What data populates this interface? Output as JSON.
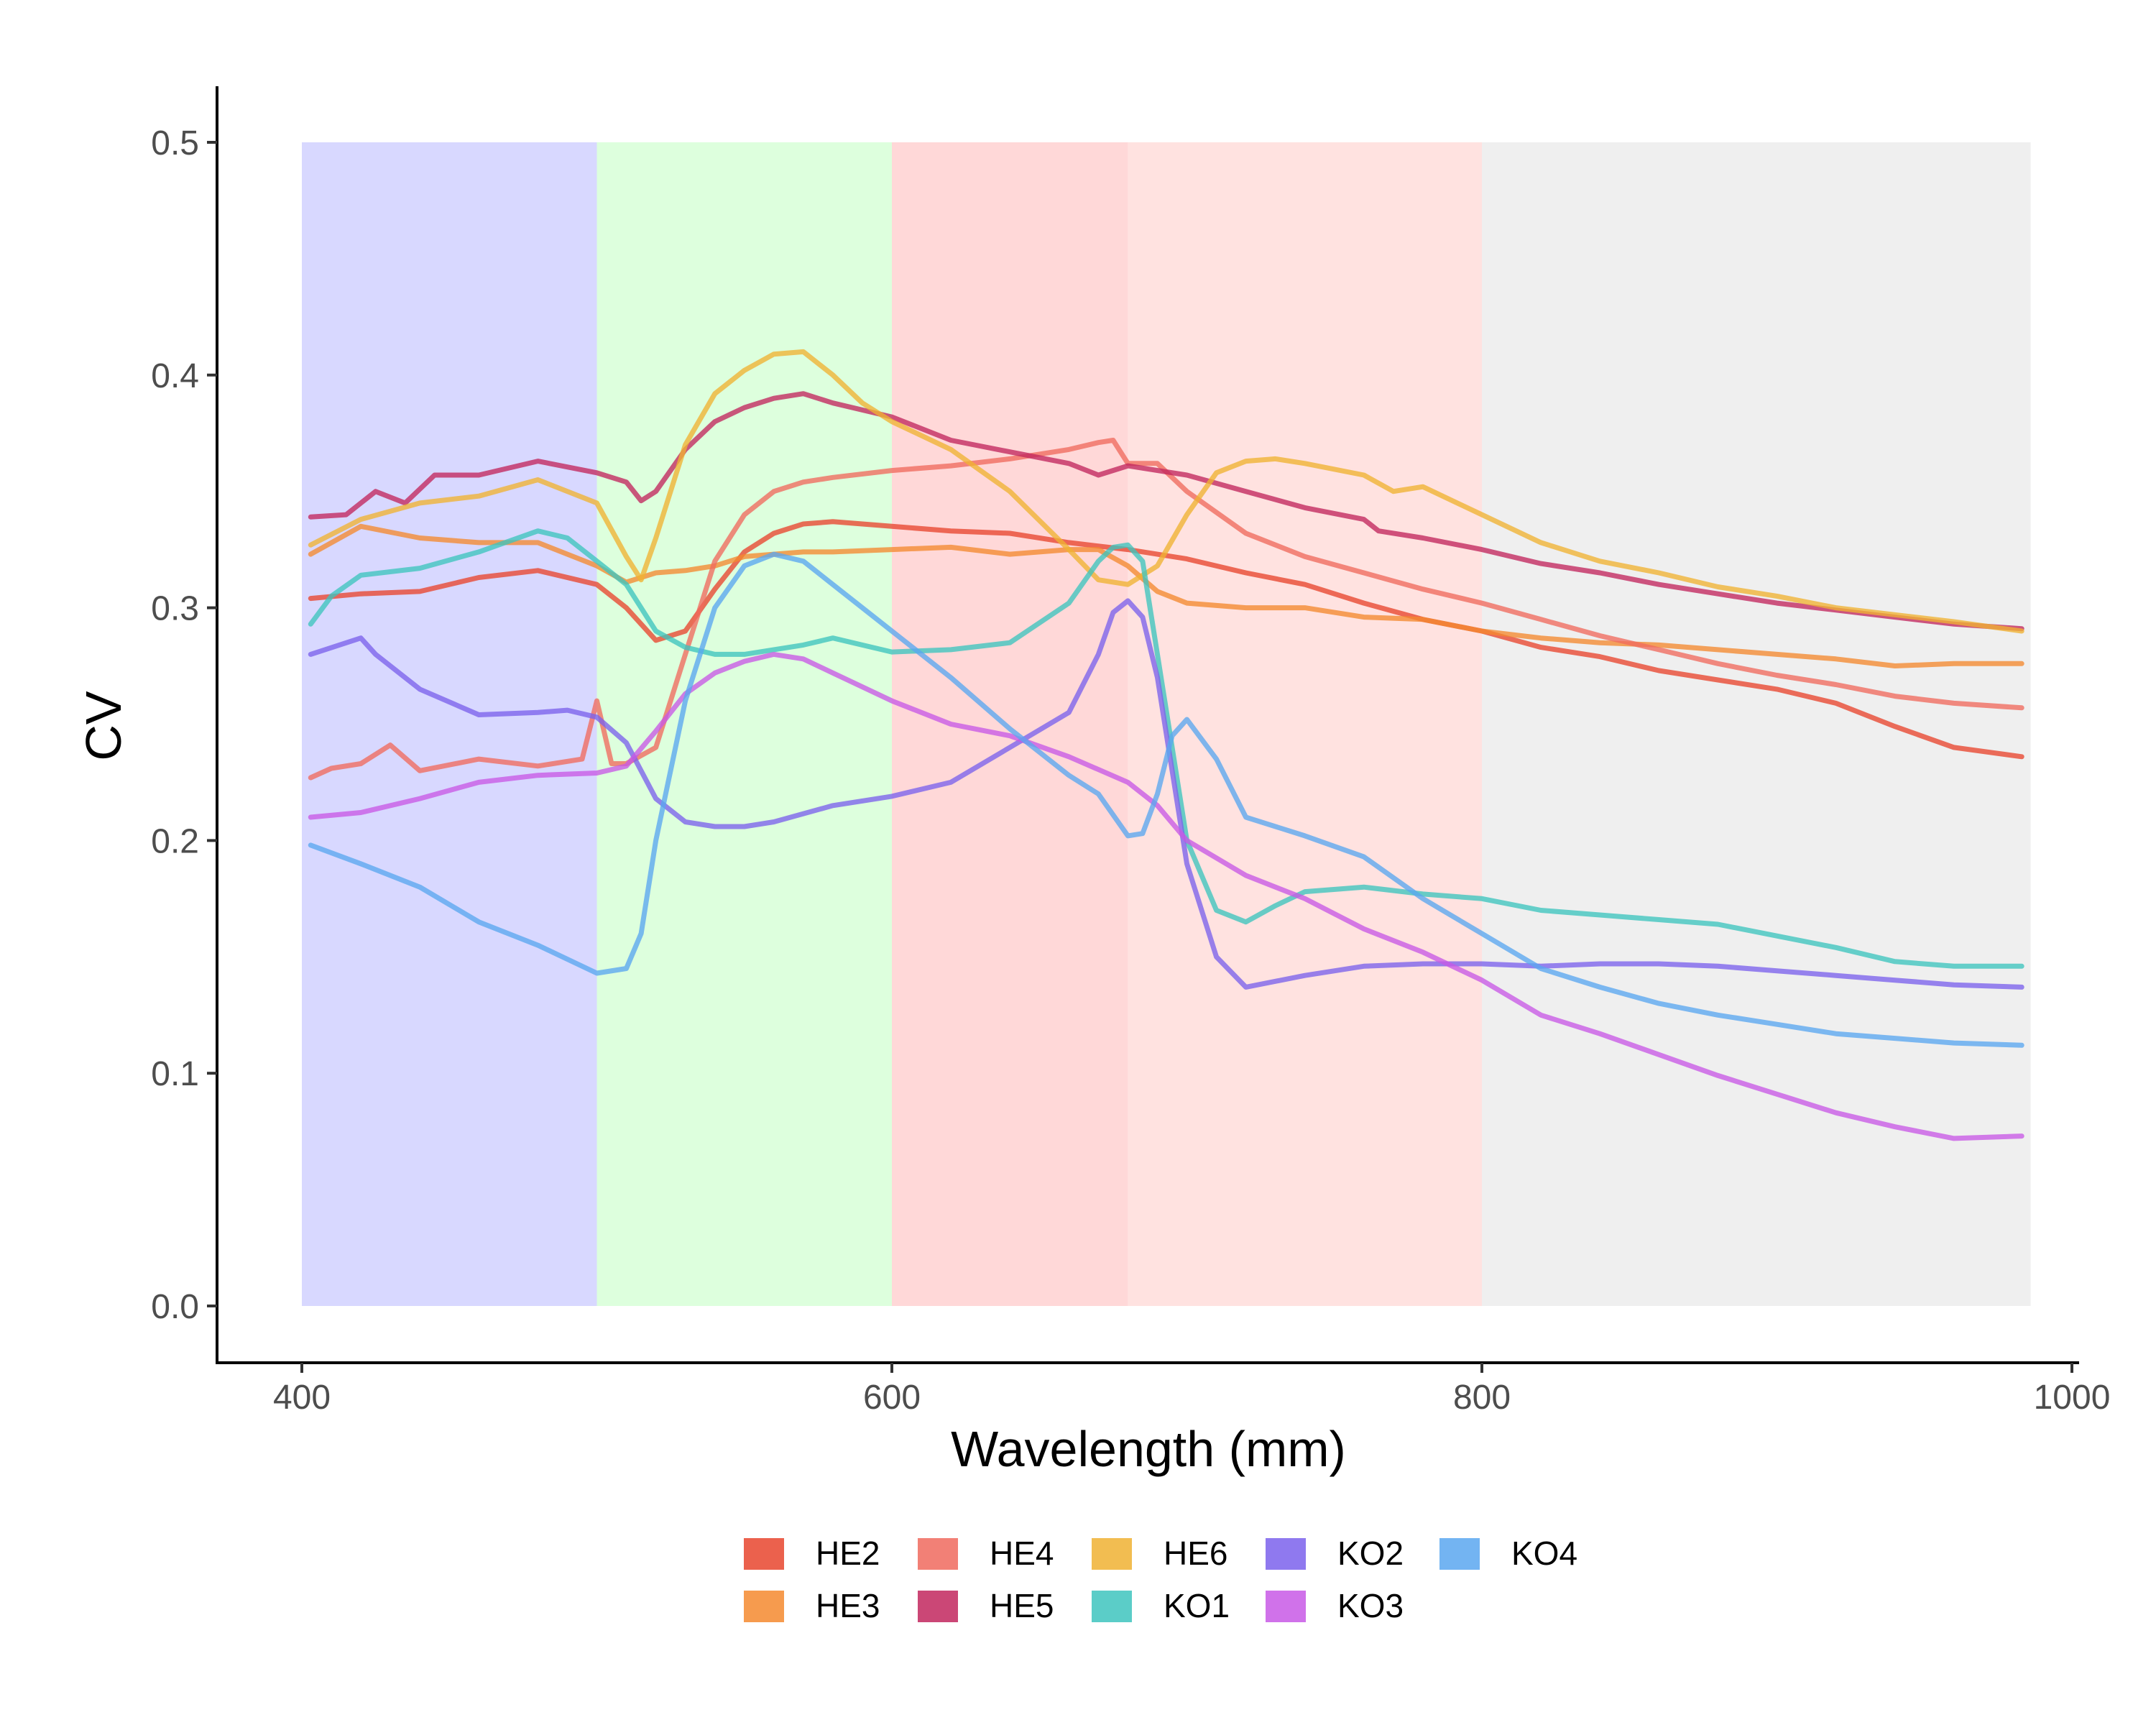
{
  "chart_data": {
    "type": "line",
    "title": "",
    "xlabel": "Wavelength (mm)",
    "ylabel": "CV",
    "xlim": [
      400,
      990
    ],
    "ylim": [
      0.0,
      0.5
    ],
    "x_ticks": [
      400,
      600,
      800,
      1000
    ],
    "x_tick_labels": [
      "400",
      "600",
      "800",
      "1000"
    ],
    "y_ticks": [
      0.0,
      0.1,
      0.2,
      0.3,
      0.4,
      0.5
    ],
    "y_tick_labels": [
      "0.0",
      "0.1",
      "0.2",
      "0.3",
      "0.4",
      "0.5"
    ],
    "grid": false,
    "legend_position": "bottom",
    "bands": [
      {
        "x0": 400,
        "x1": 500,
        "color": "#d8d8ff"
      },
      {
        "x0": 500,
        "x1": 600,
        "color": "#ddffdd"
      },
      {
        "x0": 600,
        "x1": 680,
        "color": "#ffd8d8"
      },
      {
        "x0": 680,
        "x1": 800,
        "color": "#ffe2e0"
      },
      {
        "x0": 800,
        "x1": 986,
        "color": "#efefef"
      }
    ],
    "series": [
      {
        "name": "HE2",
        "color": "#e8452e",
        "x": [
          403,
          420,
          440,
          460,
          480,
          500,
          510,
          520,
          530,
          540,
          550,
          560,
          570,
          580,
          600,
          620,
          640,
          660,
          680,
          700,
          720,
          740,
          760,
          780,
          800,
          820,
          840,
          860,
          880,
          900,
          920,
          940,
          960,
          983
        ],
        "y": [
          0.304,
          0.306,
          0.307,
          0.313,
          0.316,
          0.31,
          0.3,
          0.286,
          0.29,
          0.308,
          0.324,
          0.332,
          0.336,
          0.337,
          0.335,
          0.333,
          0.332,
          0.328,
          0.325,
          0.321,
          0.315,
          0.31,
          0.302,
          0.295,
          0.29,
          0.283,
          0.279,
          0.273,
          0.269,
          0.265,
          0.259,
          0.249,
          0.24,
          0.236
        ]
      },
      {
        "name": "HE3",
        "color": "#f4892f",
        "x": [
          403,
          420,
          440,
          460,
          480,
          500,
          510,
          520,
          530,
          540,
          550,
          560,
          570,
          580,
          600,
          620,
          640,
          660,
          670,
          680,
          690,
          700,
          720,
          740,
          760,
          780,
          800,
          820,
          840,
          860,
          880,
          900,
          920,
          940,
          960,
          983
        ],
        "y": [
          0.323,
          0.335,
          0.33,
          0.328,
          0.328,
          0.318,
          0.311,
          0.315,
          0.316,
          0.318,
          0.322,
          0.323,
          0.324,
          0.324,
          0.325,
          0.326,
          0.323,
          0.325,
          0.325,
          0.318,
          0.307,
          0.302,
          0.3,
          0.3,
          0.296,
          0.295,
          0.29,
          0.287,
          0.285,
          0.284,
          0.282,
          0.28,
          0.278,
          0.275,
          0.276,
          0.276
        ]
      },
      {
        "name": "HE4",
        "color": "#f06a5e",
        "x": [
          403,
          410,
          420,
          430,
          440,
          460,
          480,
          495,
          500,
          505,
          510,
          520,
          530,
          540,
          550,
          560,
          570,
          580,
          600,
          620,
          640,
          660,
          670,
          675,
          680,
          690,
          700,
          720,
          740,
          760,
          780,
          800,
          820,
          840,
          860,
          880,
          900,
          920,
          940,
          960,
          983
        ],
        "y": [
          0.227,
          0.231,
          0.233,
          0.241,
          0.23,
          0.235,
          0.232,
          0.235,
          0.26,
          0.233,
          0.233,
          0.24,
          0.28,
          0.32,
          0.34,
          0.35,
          0.354,
          0.356,
          0.359,
          0.361,
          0.364,
          0.368,
          0.371,
          0.372,
          0.362,
          0.362,
          0.35,
          0.332,
          0.322,
          0.315,
          0.308,
          0.302,
          0.295,
          0.288,
          0.282,
          0.276,
          0.271,
          0.267,
          0.262,
          0.259,
          0.257
        ]
      },
      {
        "name": "HE5",
        "color": "#c2275e",
        "x": [
          403,
          415,
          425,
          435,
          445,
          460,
          480,
          500,
          510,
          515,
          520,
          530,
          540,
          550,
          560,
          570,
          580,
          600,
          620,
          640,
          660,
          670,
          680,
          700,
          720,
          740,
          760,
          765,
          780,
          800,
          820,
          840,
          860,
          880,
          900,
          920,
          940,
          960,
          983
        ],
        "y": [
          0.339,
          0.34,
          0.35,
          0.345,
          0.357,
          0.357,
          0.363,
          0.358,
          0.354,
          0.346,
          0.35,
          0.368,
          0.38,
          0.386,
          0.39,
          0.392,
          0.388,
          0.382,
          0.372,
          0.367,
          0.362,
          0.357,
          0.361,
          0.357,
          0.35,
          0.343,
          0.338,
          0.333,
          0.33,
          0.325,
          0.319,
          0.315,
          0.31,
          0.306,
          0.302,
          0.299,
          0.296,
          0.293,
          0.291
        ]
      },
      {
        "name": "HE6",
        "color": "#f0b232",
        "x": [
          403,
          420,
          440,
          460,
          480,
          500,
          510,
          515,
          520,
          530,
          540,
          550,
          560,
          570,
          580,
          590,
          600,
          620,
          640,
          660,
          670,
          680,
          690,
          700,
          710,
          720,
          730,
          740,
          760,
          770,
          780,
          800,
          820,
          840,
          860,
          880,
          900,
          920,
          940,
          960,
          983
        ],
        "y": [
          0.327,
          0.338,
          0.345,
          0.348,
          0.355,
          0.345,
          0.322,
          0.312,
          0.33,
          0.37,
          0.392,
          0.402,
          0.409,
          0.41,
          0.4,
          0.388,
          0.38,
          0.368,
          0.35,
          0.325,
          0.312,
          0.31,
          0.318,
          0.34,
          0.358,
          0.363,
          0.364,
          0.362,
          0.357,
          0.35,
          0.352,
          0.34,
          0.328,
          0.32,
          0.315,
          0.309,
          0.305,
          0.3,
          0.297,
          0.294,
          0.29
        ]
      },
      {
        "name": "KO1",
        "color": "#3ec4be",
        "x": [
          403,
          410,
          420,
          440,
          460,
          480,
          490,
          500,
          510,
          520,
          530,
          540,
          550,
          560,
          570,
          580,
          600,
          620,
          640,
          660,
          670,
          675,
          680,
          685,
          690,
          700,
          710,
          720,
          730,
          740,
          760,
          780,
          800,
          820,
          840,
          860,
          880,
          900,
          920,
          940,
          960,
          983
        ],
        "y": [
          0.293,
          0.305,
          0.314,
          0.317,
          0.324,
          0.333,
          0.33,
          0.32,
          0.31,
          0.29,
          0.283,
          0.28,
          0.28,
          0.282,
          0.284,
          0.287,
          0.281,
          0.282,
          0.285,
          0.302,
          0.32,
          0.326,
          0.327,
          0.32,
          0.28,
          0.2,
          0.17,
          0.165,
          0.172,
          0.178,
          0.18,
          0.177,
          0.175,
          0.17,
          0.168,
          0.166,
          0.164,
          0.159,
          0.154,
          0.148,
          0.146,
          0.146
        ]
      },
      {
        "name": "KO2",
        "color": "#7b62ec",
        "x": [
          403,
          420,
          425,
          440,
          460,
          480,
          490,
          500,
          510,
          520,
          530,
          540,
          550,
          560,
          580,
          600,
          620,
          640,
          660,
          670,
          675,
          680,
          685,
          690,
          700,
          710,
          720,
          740,
          760,
          780,
          800,
          820,
          840,
          860,
          880,
          900,
          920,
          940,
          960,
          983
        ],
        "y": [
          0.28,
          0.287,
          0.28,
          0.265,
          0.254,
          0.255,
          0.256,
          0.253,
          0.242,
          0.218,
          0.208,
          0.206,
          0.206,
          0.208,
          0.215,
          0.219,
          0.225,
          0.24,
          0.255,
          0.28,
          0.298,
          0.303,
          0.296,
          0.27,
          0.19,
          0.15,
          0.137,
          0.142,
          0.146,
          0.147,
          0.147,
          0.146,
          0.147,
          0.147,
          0.146,
          0.144,
          0.142,
          0.14,
          0.138,
          0.137
        ]
      },
      {
        "name": "KO3",
        "color": "#c859e6",
        "x": [
          403,
          420,
          440,
          460,
          480,
          500,
          510,
          520,
          530,
          540,
          550,
          560,
          570,
          580,
          600,
          620,
          640,
          660,
          680,
          690,
          700,
          720,
          740,
          760,
          780,
          800,
          820,
          840,
          860,
          880,
          900,
          920,
          940,
          960,
          983
        ],
        "y": [
          0.21,
          0.212,
          0.218,
          0.225,
          0.228,
          0.229,
          0.232,
          0.247,
          0.263,
          0.272,
          0.277,
          0.28,
          0.278,
          0.272,
          0.26,
          0.25,
          0.245,
          0.236,
          0.225,
          0.215,
          0.2,
          0.185,
          0.175,
          0.162,
          0.152,
          0.14,
          0.125,
          0.117,
          0.108,
          0.099,
          0.091,
          0.083,
          0.077,
          0.072,
          0.073
        ]
      },
      {
        "name": "KO4",
        "color": "#5aa7f0",
        "x": [
          403,
          420,
          440,
          460,
          480,
          500,
          510,
          515,
          520,
          530,
          540,
          550,
          560,
          570,
          580,
          600,
          620,
          640,
          660,
          670,
          680,
          685,
          690,
          695,
          700,
          710,
          720,
          740,
          760,
          780,
          800,
          820,
          840,
          860,
          880,
          900,
          920,
          940,
          960,
          983
        ],
        "y": [
          0.198,
          0.19,
          0.18,
          0.165,
          0.155,
          0.143,
          0.145,
          0.16,
          0.2,
          0.26,
          0.3,
          0.318,
          0.323,
          0.32,
          0.31,
          0.29,
          0.27,
          0.248,
          0.228,
          0.22,
          0.202,
          0.203,
          0.22,
          0.245,
          0.252,
          0.235,
          0.21,
          0.202,
          0.193,
          0.175,
          0.16,
          0.145,
          0.137,
          0.13,
          0.125,
          0.121,
          0.117,
          0.115,
          0.113,
          0.112
        ]
      }
    ]
  }
}
